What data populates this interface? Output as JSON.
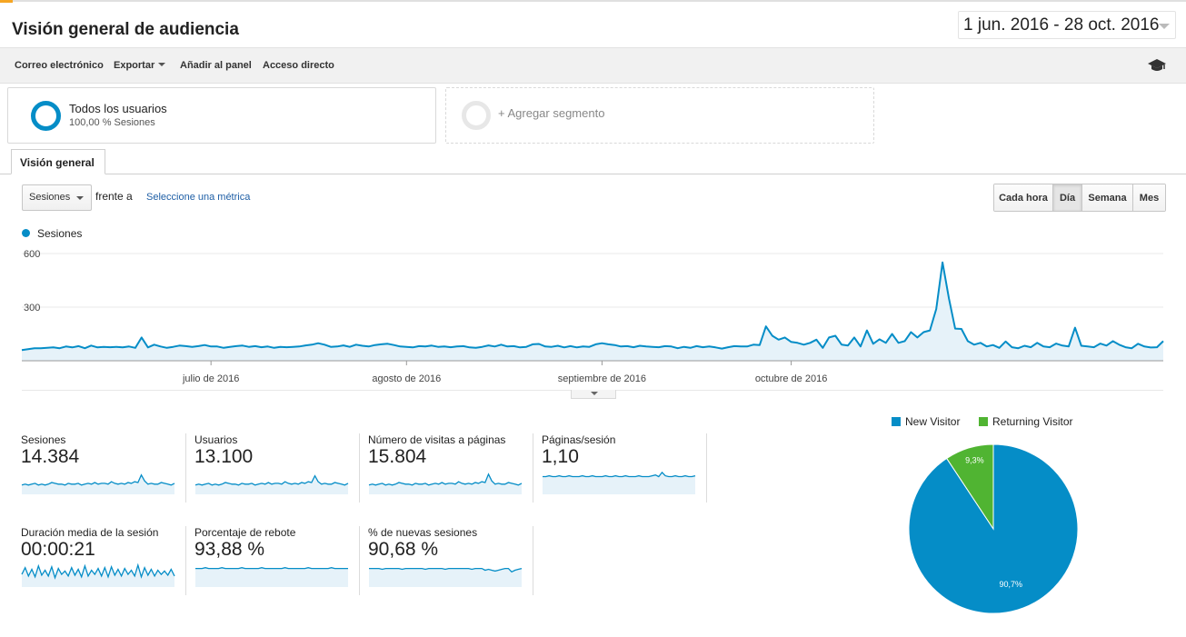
{
  "header": {
    "title": "Visión general de audiencia",
    "date_range": "1 jun. 2016 - 28 oct. 2016"
  },
  "toolbar": {
    "email": "Correo electrónico",
    "export": "Exportar",
    "add_to_dashboard": "Añadir al panel",
    "shortcut": "Acceso directo",
    "education_icon": "graduation-cap-icon"
  },
  "segments": {
    "active_name": "Todos los usuarios",
    "active_detail": "100,00 % Sesiones",
    "add_label": "+ Agregar segmento"
  },
  "tabs": {
    "overview": "Visión general"
  },
  "controls": {
    "metric": "Sesiones",
    "versus": "frente a",
    "select_metric": "Seleccione una métrica",
    "periods": [
      "Cada hora",
      "Día",
      "Semana",
      "Mes"
    ],
    "active_period": "Día"
  },
  "colors": {
    "new_visitor": "#058dc7",
    "returning_visitor": "#50b432",
    "line": "#058dc7",
    "area": "#e6f2f9"
  },
  "chart_data": [
    {
      "type": "area",
      "series": [
        {
          "name": "Sesiones",
          "values": [
            60,
            65,
            70,
            70,
            72,
            75,
            70,
            80,
            75,
            82,
            70,
            85,
            75,
            78,
            76,
            78,
            75,
            80,
            72,
            130,
            75,
            90,
            80,
            72,
            78,
            85,
            82,
            78,
            82,
            88,
            80,
            80,
            72,
            78,
            82,
            85,
            78,
            82,
            76,
            80,
            72,
            78,
            76,
            78,
            80,
            86,
            90,
            98,
            90,
            78,
            80,
            86,
            78,
            90,
            84,
            80,
            88,
            92,
            95,
            88,
            80,
            78,
            75,
            82,
            80,
            85,
            78,
            80,
            76,
            80,
            82,
            75,
            72,
            78,
            86,
            80,
            90,
            80,
            82,
            75,
            78,
            92,
            94,
            80,
            78,
            84,
            75,
            82,
            75,
            80,
            78,
            92,
            98,
            92,
            88,
            80,
            82,
            76,
            84,
            80,
            78,
            76,
            82,
            80,
            70,
            78,
            72,
            82,
            76,
            80,
            75,
            68,
            76,
            82,
            80,
            80,
            90,
            88,
            192,
            140,
            118,
            130,
            105,
            100,
            90,
            100,
            118,
            72,
            130,
            140,
            90,
            85,
            130,
            80,
            170,
            95,
            120,
            100,
            150,
            100,
            110,
            160,
            130,
            160,
            170,
            290,
            550,
            350,
            180,
            178,
            110,
            90,
            100,
            80,
            88,
            72,
            108,
            76,
            70,
            84,
            76,
            100,
            80,
            76,
            96,
            85,
            80,
            185,
            84,
            80,
            76,
            96,
            85,
            110,
            90,
            76,
            70,
            95,
            80,
            74,
            76,
            110
          ]
        }
      ],
      "ylim": [
        0,
        600
      ],
      "y_ticks": [
        "600",
        "300"
      ],
      "x_tick_labels": [
        "julio de 2016",
        "agosto de 2016",
        "septiembre de 2016",
        "octubre de 2016"
      ],
      "grid": true
    },
    {
      "type": "pie",
      "categories": [
        "New Visitor",
        "Returning Visitor"
      ],
      "values": [
        90.7,
        9.3
      ],
      "labels": [
        "90,7%",
        "9,3%"
      ]
    }
  ],
  "stats": [
    {
      "label": "Sesiones",
      "value": "14.384",
      "spark": [
        10,
        11,
        10,
        11,
        12,
        10,
        11,
        10,
        11,
        13,
        12,
        11,
        11,
        10,
        12,
        11,
        11,
        12,
        10,
        11,
        12,
        11,
        13,
        11,
        12,
        12,
        11,
        14,
        12,
        11,
        12,
        11,
        13,
        12,
        14,
        13,
        22,
        15,
        11,
        12,
        11,
        11,
        13,
        12,
        11,
        10,
        12
      ]
    },
    {
      "label": "Usuarios",
      "value": "13.100",
      "spark": [
        10,
        11,
        10,
        11,
        12,
        10,
        11,
        10,
        11,
        13,
        12,
        11,
        11,
        10,
        12,
        11,
        11,
        12,
        10,
        11,
        12,
        11,
        13,
        11,
        12,
        12,
        11,
        14,
        12,
        11,
        12,
        11,
        13,
        12,
        14,
        13,
        21,
        14,
        11,
        12,
        11,
        11,
        13,
        12,
        11,
        10,
        12
      ]
    },
    {
      "label": "Número de visitas a páginas",
      "value": "15.804",
      "spark": [
        10,
        11,
        10,
        11,
        12,
        10,
        11,
        10,
        11,
        13,
        12,
        11,
        11,
        10,
        12,
        11,
        11,
        12,
        10,
        11,
        12,
        11,
        13,
        11,
        12,
        12,
        11,
        14,
        12,
        11,
        12,
        11,
        13,
        12,
        14,
        13,
        23,
        15,
        11,
        12,
        11,
        11,
        13,
        12,
        11,
        10,
        12
      ]
    },
    {
      "label": "Páginas/sesión",
      "value": "1,10",
      "spark": [
        20,
        20,
        21,
        20,
        20,
        21,
        20,
        20,
        21,
        20,
        20,
        20,
        21,
        20,
        20,
        21,
        20,
        20,
        20,
        21,
        20,
        20,
        21,
        20,
        20,
        21,
        20,
        20,
        20,
        21,
        20,
        20,
        20,
        21,
        22,
        20,
        25,
        21,
        20,
        20,
        21,
        20,
        20,
        21,
        20,
        20,
        21
      ]
    },
    {
      "label": "Duración media de la sesión",
      "value": "00:00:21",
      "spark": [
        14,
        22,
        12,
        20,
        11,
        24,
        13,
        19,
        12,
        23,
        10,
        21,
        14,
        18,
        12,
        22,
        13,
        20,
        11,
        24,
        12,
        19,
        14,
        21,
        12,
        22,
        11,
        23,
        13,
        20,
        12,
        21,
        14,
        19,
        12,
        25,
        11,
        22,
        13,
        20,
        12,
        19,
        14,
        18,
        13,
        20,
        12
      ]
    },
    {
      "label": "Porcentaje de rebote",
      "value": "93,88 %",
      "spark": [
        21,
        21,
        21,
        22,
        21,
        21,
        21,
        21,
        22,
        21,
        21,
        21,
        21,
        21,
        22,
        21,
        21,
        21,
        21,
        21,
        22,
        21,
        21,
        21,
        21,
        21,
        21,
        22,
        21,
        21,
        21,
        21,
        21,
        21,
        22,
        21,
        21,
        21,
        21,
        21,
        21,
        22,
        21,
        21,
        21,
        21,
        21
      ]
    },
    {
      "label": "% de nuevas sesiones",
      "value": "90,68 %",
      "spark": [
        21,
        21,
        21,
        21,
        20,
        21,
        21,
        21,
        21,
        21,
        20,
        21,
        21,
        21,
        21,
        21,
        21,
        20,
        21,
        21,
        21,
        21,
        21,
        20,
        21,
        21,
        21,
        21,
        21,
        21,
        21,
        20,
        21,
        21,
        21,
        19,
        20,
        19,
        18,
        19,
        20,
        21,
        21,
        17,
        19,
        20,
        21
      ]
    }
  ]
}
